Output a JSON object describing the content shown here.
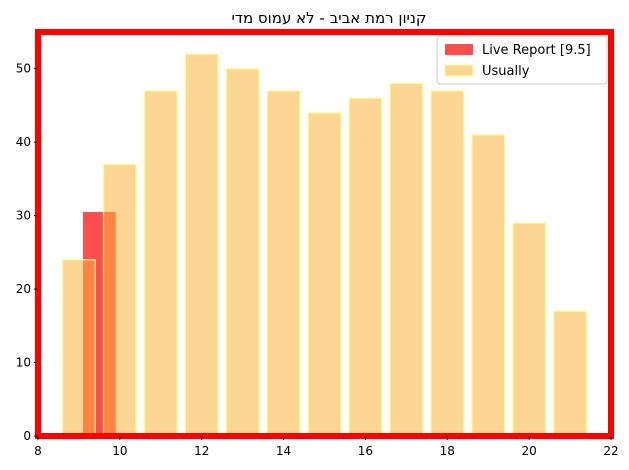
{
  "chart_data": {
    "type": "bar",
    "title": "קניון רמת אביב  - לא עמוס מדי",
    "xlabel": "",
    "ylabel": "",
    "xlim": [
      8,
      22
    ],
    "ylim": [
      0,
      55
    ],
    "xticks": [
      8,
      10,
      12,
      14,
      16,
      18,
      20,
      22
    ],
    "yticks": [
      0,
      10,
      20,
      30,
      40,
      50
    ],
    "legend_position": "top-right",
    "grid": false,
    "series": [
      {
        "name": "Live Report [9.5]",
        "color": "#ff0000",
        "opacity": 0.7,
        "bar_width": 0.8,
        "x": [
          9.5
        ],
        "values": [
          30.5
        ]
      },
      {
        "name": "Usually",
        "color": "#fdb53c",
        "edge_color": "#ffff99",
        "opacity": 0.55,
        "bar_width": 0.8,
        "x": [
          9,
          10,
          11,
          12,
          13,
          14,
          15,
          16,
          17,
          18,
          19,
          20,
          21
        ],
        "values": [
          24,
          37,
          47,
          52,
          50,
          47,
          44,
          46,
          48,
          47,
          41,
          29,
          17
        ]
      }
    ],
    "frame_color": "#ff0000"
  }
}
